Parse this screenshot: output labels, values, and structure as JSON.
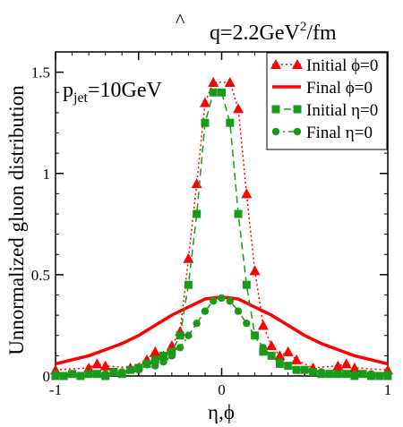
{
  "chart_data": {
    "type": "line",
    "title": "q̂=2.2GeV²/fm",
    "title_parts": {
      "q": "q",
      "hat": "^",
      "eq": "=2.2GeV",
      "sup": "2",
      "tail": "/fm"
    },
    "xlabel": "η,ϕ",
    "ylabel": "Unnormalized gluon distribution",
    "xlim": [
      -1,
      1
    ],
    "ylim": [
      0,
      1.6
    ],
    "x_ticks": [
      "-1",
      "0",
      "1"
    ],
    "y_ticks": [
      "0",
      "0.5",
      "1",
      "1.5"
    ],
    "annotation": {
      "main": "p",
      "sub": "jet",
      "rest": "=10GeV"
    },
    "legend_position": "top-right",
    "series": [
      {
        "name": "Initial ϕ=0",
        "color": "#ff0000",
        "style": "dotted",
        "marker": "triangle",
        "x": [
          -1.0,
          -0.8,
          -0.75,
          -0.7,
          -0.55,
          -0.45,
          -0.4,
          -0.35,
          -0.3,
          -0.25,
          -0.2,
          -0.15,
          -0.1,
          -0.05,
          0.05,
          0.1,
          0.15,
          0.2,
          0.25,
          0.3,
          0.35,
          0.4,
          0.45,
          0.55,
          0.7,
          0.75,
          0.8,
          1.0
        ],
        "y": [
          0.03,
          0.04,
          0.06,
          0.05,
          0.04,
          0.08,
          0.12,
          0.1,
          0.15,
          0.22,
          0.58,
          0.95,
          1.35,
          1.45,
          1.45,
          1.32,
          0.9,
          0.52,
          0.25,
          0.15,
          0.1,
          0.12,
          0.08,
          0.04,
          0.05,
          0.06,
          0.04,
          0.03
        ]
      },
      {
        "name": "Final ϕ=0",
        "color": "#ff0000",
        "style": "solid",
        "marker": "none",
        "x": [
          -1.0,
          -0.9,
          -0.8,
          -0.7,
          -0.6,
          -0.5,
          -0.4,
          -0.3,
          -0.2,
          -0.1,
          0.0,
          0.1,
          0.2,
          0.3,
          0.4,
          0.5,
          0.6,
          0.7,
          0.8,
          0.9,
          1.0
        ],
        "y": [
          0.06,
          0.08,
          0.1,
          0.13,
          0.16,
          0.2,
          0.25,
          0.3,
          0.34,
          0.38,
          0.39,
          0.38,
          0.34,
          0.3,
          0.25,
          0.2,
          0.16,
          0.13,
          0.1,
          0.08,
          0.06
        ]
      },
      {
        "name": "Initial η=0",
        "color": "#1a9a1a",
        "style": "dashed",
        "marker": "square",
        "x": [
          -1.0,
          -0.95,
          -0.9,
          -0.85,
          -0.8,
          -0.75,
          -0.7,
          -0.65,
          -0.6,
          -0.55,
          -0.5,
          -0.45,
          -0.4,
          -0.35,
          -0.3,
          -0.25,
          -0.2,
          -0.15,
          -0.1,
          -0.05,
          0.0,
          0.05,
          0.1,
          0.15,
          0.2,
          0.25,
          0.3,
          0.35,
          0.4,
          0.45,
          0.5,
          0.55,
          0.6,
          0.65,
          0.7,
          0.75,
          0.8,
          0.85,
          0.9,
          0.95,
          1.0
        ],
        "y": [
          0.0,
          0.0,
          0.01,
          0.0,
          0.01,
          0.01,
          0.0,
          0.02,
          0.01,
          0.03,
          0.04,
          0.06,
          0.08,
          0.1,
          0.12,
          0.2,
          0.45,
          0.8,
          1.25,
          1.4,
          1.4,
          1.25,
          0.8,
          0.45,
          0.2,
          0.12,
          0.1,
          0.06,
          0.05,
          0.03,
          0.03,
          0.02,
          0.01,
          0.01,
          0.01,
          0.01,
          0.0,
          0.01,
          0.0,
          0.0,
          0.0
        ]
      },
      {
        "name": "Final η=0",
        "color": "#1a9a1a",
        "style": "dashdot",
        "marker": "circle",
        "x": [
          -1.0,
          -0.9,
          -0.8,
          -0.7,
          -0.6,
          -0.5,
          -0.4,
          -0.35,
          -0.3,
          -0.25,
          -0.2,
          -0.15,
          -0.1,
          -0.05,
          0.0,
          0.05,
          0.1,
          0.15,
          0.2,
          0.25,
          0.3,
          0.35,
          0.4,
          0.5,
          0.6,
          0.7,
          0.8,
          0.9,
          1.0
        ],
        "y": [
          0.01,
          0.01,
          0.01,
          0.01,
          0.02,
          0.03,
          0.05,
          0.07,
          0.1,
          0.14,
          0.2,
          0.26,
          0.32,
          0.37,
          0.385,
          0.37,
          0.32,
          0.26,
          0.2,
          0.14,
          0.1,
          0.07,
          0.05,
          0.03,
          0.02,
          0.01,
          0.01,
          0.01,
          0.01
        ]
      }
    ]
  }
}
